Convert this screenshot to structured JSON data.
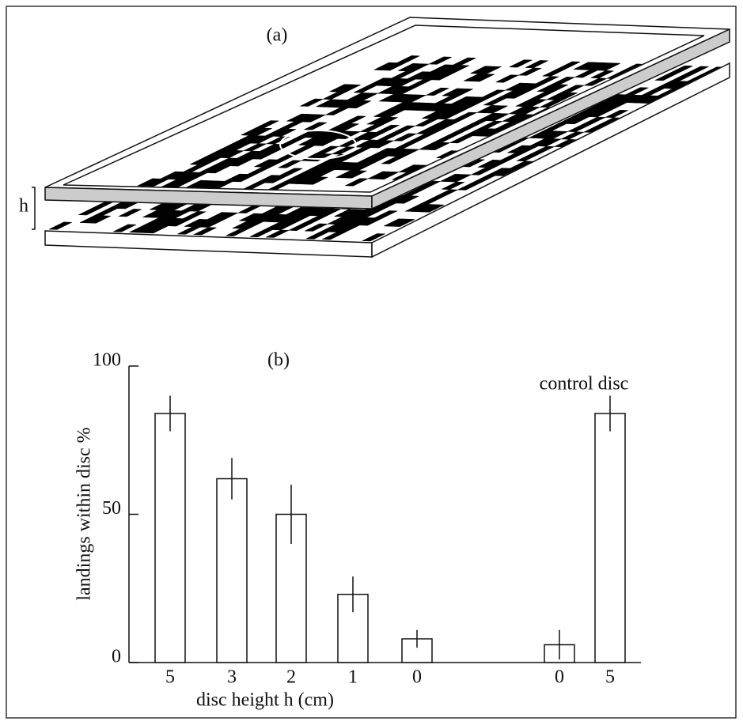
{
  "panel_a": {
    "label": "(a)",
    "height_label": "h"
  },
  "chart_data": {
    "type": "bar",
    "panel_label": "(b)",
    "categories": [
      "5",
      "3",
      "2",
      "1",
      "0",
      "0",
      "5"
    ],
    "values": [
      84,
      62,
      50,
      23,
      8,
      6,
      84
    ],
    "errors": [
      6,
      7,
      10,
      6,
      3,
      5,
      6
    ],
    "color": "#ffffff",
    "ylim": [
      0,
      100
    ],
    "yticks": [
      0,
      50,
      100
    ],
    "ylabel": "landings within disc  %",
    "xlabel": "disc  height h  (cm)",
    "annotation": "control disc"
  }
}
